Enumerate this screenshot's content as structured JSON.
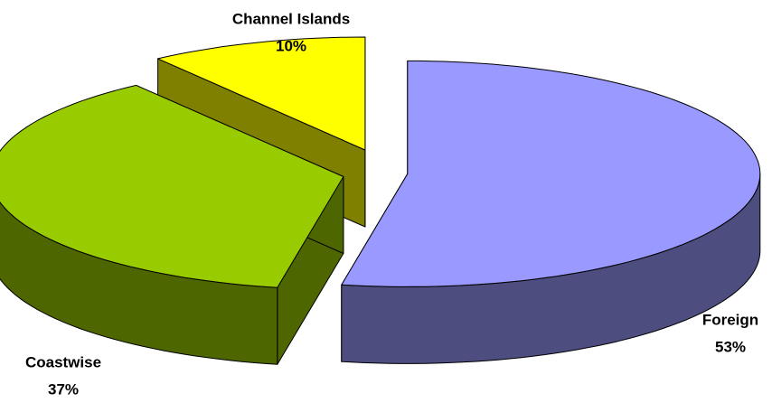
{
  "chart_data": {
    "type": "pie3d",
    "categories": [
      "Foreign",
      "Coastwise",
      "Channel Islands"
    ],
    "values": [
      53,
      37,
      10
    ],
    "value_labels": [
      "53%",
      "37%",
      "10%"
    ],
    "colors": [
      "#9999ff",
      "#99cc00",
      "#ffff00"
    ]
  }
}
